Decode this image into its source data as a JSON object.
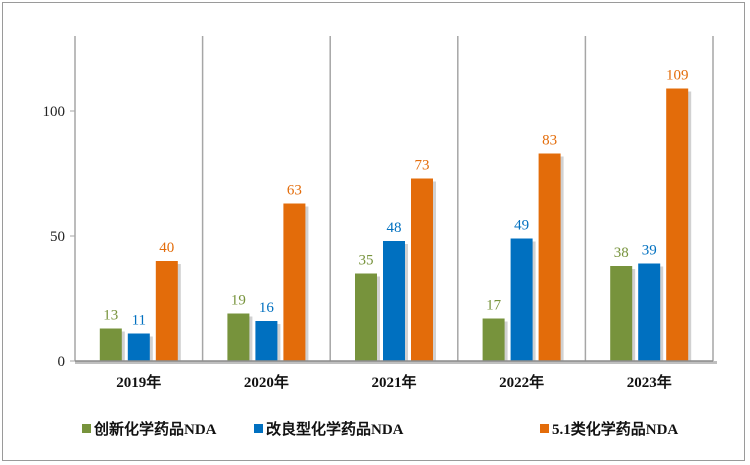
{
  "chart_data": {
    "type": "bar",
    "categories": [
      "2019年",
      "2020年",
      "2021年",
      "2022年",
      "2023年"
    ],
    "series": [
      {
        "name": "创新化学药品NDA",
        "color": "#77933c",
        "values": [
          13,
          19,
          35,
          17,
          38
        ]
      },
      {
        "name": "改良型化学药品NDA",
        "color": "#0070c0",
        "values": [
          11,
          16,
          48,
          49,
          39
        ]
      },
      {
        "name": "5.1类化学药品NDA",
        "color": "#e36c0a",
        "values": [
          40,
          63,
          73,
          83,
          109
        ]
      }
    ],
    "yticks": [
      0,
      50,
      100
    ],
    "ylim": [
      0,
      130
    ],
    "grid": "vertical category separators",
    "legend_position": "bottom",
    "data_labels": true
  }
}
